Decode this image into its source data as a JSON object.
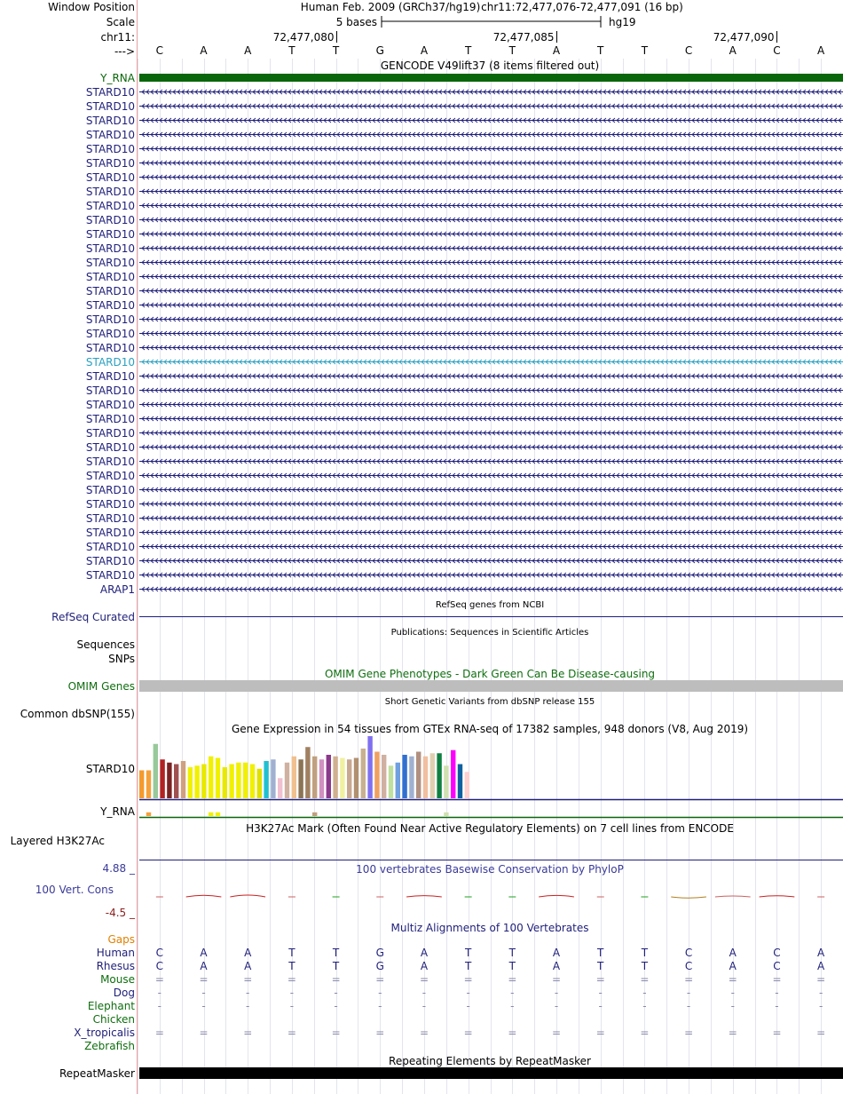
{
  "header": {
    "window_position_label": "Window Position",
    "assembly": "Human Feb. 2009 (GRCh37/hg19)",
    "position": "chr11:72,477,076-72,477,091 (16 bp)",
    "scale_label": "Scale",
    "scale_text": "5 bases",
    "scale_db": "hg19",
    "chrom_label": "chr11:",
    "strand_label": "--->",
    "ticks": [
      "72,477,080",
      "72,477,085",
      "72,477,090"
    ]
  },
  "sequence": [
    "C",
    "A",
    "A",
    "T",
    "T",
    "G",
    "A",
    "T",
    "T",
    "A",
    "T",
    "T",
    "C",
    "A",
    "C",
    "A"
  ],
  "gencode": {
    "title": "GENCODE V49lift37 (8 items filtered out)",
    "rows": [
      "Y_RNA",
      "STARD10",
      "STARD10",
      "STARD10",
      "STARD10",
      "STARD10",
      "STARD10",
      "STARD10",
      "STARD10",
      "STARD10",
      "STARD10",
      "STARD10",
      "STARD10",
      "STARD10",
      "STARD10",
      "STARD10",
      "STARD10",
      "STARD10",
      "STARD10",
      "STARD10",
      "STARD10",
      "STARD10",
      "STARD10",
      "STARD10",
      "STARD10",
      "STARD10",
      "STARD10",
      "STARD10",
      "STARD10",
      "STARD10",
      "STARD10",
      "STARD10",
      "STARD10",
      "STARD10",
      "STARD10",
      "STARD10",
      "ARAP1"
    ],
    "highlight_row": 20,
    "colors": {
      "label": "#1f1f7a",
      "y_rna_bar": "#0a660a",
      "highlight": "#2aa0c0"
    }
  },
  "refseq": {
    "title": "RefSeq genes from NCBI",
    "label": "RefSeq Curated"
  },
  "publications": {
    "title": "Publications: Sequences in Scientific Articles",
    "label": "Sequences"
  },
  "snps": {
    "label": "SNPs"
  },
  "omim": {
    "title": "OMIM Gene Phenotypes - Dark Green Can Be Disease-causing",
    "label": "OMIM Genes",
    "color": "#0f6e0f"
  },
  "dbsnp": {
    "title": "Short Genetic Variants from dbSNP release 155",
    "label": "Common dbSNP(155)"
  },
  "gtex": {
    "title": "Gene Expression in 54 tissues from GTEx RNA-seq of 17382 samples, 948 donors (V8, Aug 2019)",
    "gene1": "STARD10",
    "gene2": "Y_RNA",
    "stard10_values": [
      18,
      18,
      35,
      25,
      23,
      22,
      24,
      20,
      21,
      22,
      27,
      26,
      20,
      22,
      23,
      23,
      22,
      19,
      24,
      25,
      13,
      23,
      27,
      25,
      33,
      27,
      25,
      28,
      27,
      26,
      25,
      26,
      32,
      40,
      30,
      28,
      21,
      23,
      28,
      27,
      30,
      27,
      29,
      29,
      21,
      31,
      22,
      17
    ],
    "y_rna_values": [
      0,
      3,
      0,
      0,
      0,
      0,
      0,
      0,
      0,
      0,
      3,
      3,
      0,
      0,
      0,
      0,
      0,
      0,
      0,
      0,
      0,
      0,
      0,
      0,
      0,
      3,
      0,
      0,
      0,
      0,
      0,
      0,
      0,
      0,
      0,
      0,
      0,
      0,
      0,
      0,
      0,
      0,
      0,
      0,
      3,
      0,
      0,
      0
    ],
    "colors": [
      "#f59a2e",
      "#f5a03a",
      "#98c99a",
      "#b22222",
      "#7a2222",
      "#a05050",
      "#d0a080",
      "#f0f000",
      "#f0f000",
      "#e8e800",
      "#f0f000",
      "#f0f000",
      "#e8e800",
      "#f0f000",
      "#f0f000",
      "#f0f000",
      "#f0f000",
      "#e0e000",
      "#20c0d0",
      "#a0b0d0",
      "#f0c0d0",
      "#d0b0a0",
      "#f0c090",
      "#8b7355",
      "#a08060",
      "#c0a080",
      "#d090c0",
      "#8b3a8b",
      "#d0b090",
      "#f0f0a0",
      "#c8a890",
      "#b09070",
      "#c8b090",
      "#8070f0",
      "#f0a060",
      "#d0b0a0",
      "#c0e0a0",
      "#70a0e0",
      "#3070d0",
      "#a0b0d0",
      "#b09080",
      "#f0c0a0",
      "#e0d0b0",
      "#108040",
      "#d0e0b0",
      "#ff00ff",
      "#1060a0",
      "#ffd0d0"
    ]
  },
  "h3k27ac": {
    "title": "H3K27Ac Mark (Often Found Near Active Regulatory Elements) on 7 cell lines from ENCODE",
    "label": "Layered H3K27Ac"
  },
  "phylop": {
    "title": "100 vertebrates Basewise Conservation by PhyloP",
    "label": "100 Vert. Cons",
    "ymax": "4.88 _",
    "ymin": "-4.5 _"
  },
  "multiz": {
    "title": "Multiz Alignments of 100 Vertebrates",
    "gaps_label": "Gaps",
    "species": [
      {
        "name": "Human",
        "color": "#1f1f7a",
        "row": "C A A T T G A T T A T T C A C A"
      },
      {
        "name": "Rhesus",
        "color": "#1f1f7a",
        "row": "C A A T T G A T T A T T C A C A"
      },
      {
        "name": "Mouse",
        "color": "#0f6e0f",
        "row": "= = = = = = = = = = = = = = = ="
      },
      {
        "name": "Dog",
        "color": "#1f1f7a",
        "row": "- - - - - - - - - - - - - - - -"
      },
      {
        "name": "Elephant",
        "color": "#0f6e0f",
        "row": "- - - - - - - - - - - - - - - -"
      },
      {
        "name": "Chicken",
        "color": "#0f6e0f",
        "row": ""
      },
      {
        "name": "X_tropicalis",
        "color": "#1f1f7a",
        "row": "= = = = = = = = = = = = = = = ="
      },
      {
        "name": "Zebrafish",
        "color": "#0f6e0f",
        "row": ""
      }
    ]
  },
  "repeatmasker": {
    "title": "Repeating Elements by RepeatMasker",
    "label": "RepeatMasker"
  }
}
